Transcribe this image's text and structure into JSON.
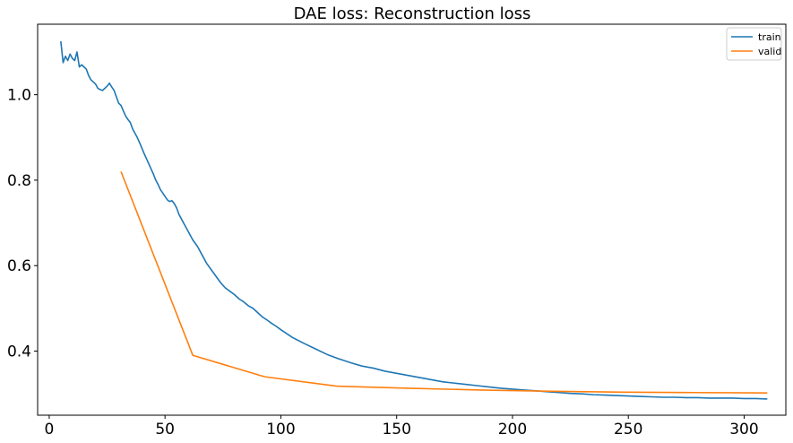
{
  "chart_data": {
    "type": "line",
    "title": "DAE loss: Reconstruction loss",
    "xlabel": "",
    "ylabel": "",
    "xlim": [
      -5,
      318
    ],
    "ylim": [
      0.25,
      1.165
    ],
    "xticks": [
      0,
      50,
      100,
      150,
      200,
      250,
      300
    ],
    "yticks": [
      0.4,
      0.6,
      0.8,
      1.0
    ],
    "ytick_labels": [
      "0.4",
      "0.6",
      "0.8",
      "1.0"
    ],
    "grid": false,
    "legend": "top-right",
    "series": [
      {
        "name": "train",
        "color": "#1f77b4",
        "x": [
          5,
          6,
          7,
          8,
          9,
          10,
          11,
          12,
          13,
          14,
          15,
          16,
          17,
          18,
          19,
          20,
          21,
          22,
          23,
          24,
          25,
          26,
          27,
          28,
          29,
          30,
          31,
          32,
          33,
          34,
          35,
          36,
          37,
          38,
          39,
          40,
          41,
          42,
          43,
          44,
          45,
          46,
          47,
          48,
          49,
          50,
          51,
          52,
          53,
          54,
          55,
          56,
          57,
          58,
          59,
          60,
          62,
          64,
          66,
          68,
          70,
          72,
          74,
          76,
          78,
          80,
          82,
          84,
          86,
          88,
          90,
          92,
          94,
          96,
          98,
          100,
          105,
          110,
          115,
          120,
          125,
          130,
          135,
          140,
          145,
          150,
          155,
          160,
          165,
          170,
          175,
          180,
          185,
          190,
          195,
          200,
          205,
          210,
          215,
          220,
          225,
          230,
          235,
          240,
          245,
          250,
          255,
          260,
          265,
          270,
          275,
          280,
          285,
          290,
          295,
          300,
          305,
          310
        ],
        "y": [
          1.125,
          1.075,
          1.09,
          1.08,
          1.095,
          1.085,
          1.08,
          1.1,
          1.065,
          1.07,
          1.065,
          1.06,
          1.045,
          1.035,
          1.03,
          1.025,
          1.015,
          1.012,
          1.01,
          1.015,
          1.02,
          1.027,
          1.018,
          1.01,
          0.995,
          0.98,
          0.975,
          0.962,
          0.95,
          0.942,
          0.935,
          0.92,
          0.91,
          0.9,
          0.888,
          0.875,
          0.862,
          0.85,
          0.838,
          0.826,
          0.814,
          0.8,
          0.79,
          0.778,
          0.77,
          0.762,
          0.754,
          0.75,
          0.752,
          0.745,
          0.735,
          0.72,
          0.71,
          0.7,
          0.69,
          0.68,
          0.66,
          0.645,
          0.625,
          0.605,
          0.59,
          0.575,
          0.56,
          0.548,
          0.54,
          0.532,
          0.522,
          0.515,
          0.506,
          0.5,
          0.49,
          0.48,
          0.473,
          0.465,
          0.458,
          0.45,
          0.432,
          0.418,
          0.405,
          0.392,
          0.382,
          0.373,
          0.365,
          0.36,
          0.353,
          0.348,
          0.343,
          0.338,
          0.333,
          0.328,
          0.325,
          0.322,
          0.319,
          0.316,
          0.313,
          0.311,
          0.309,
          0.307,
          0.305,
          0.303,
          0.301,
          0.3,
          0.298,
          0.297,
          0.296,
          0.295,
          0.294,
          0.293,
          0.292,
          0.292,
          0.291,
          0.291,
          0.29,
          0.29,
          0.29,
          0.289,
          0.289,
          0.288
        ]
      },
      {
        "name": "valid",
        "color": "#ff7f0e",
        "x": [
          31,
          62,
          93,
          124,
          155,
          186,
          217,
          248,
          279,
          310
        ],
        "y": [
          0.82,
          0.39,
          0.34,
          0.318,
          0.313,
          0.309,
          0.306,
          0.304,
          0.303,
          0.302
        ]
      }
    ]
  }
}
